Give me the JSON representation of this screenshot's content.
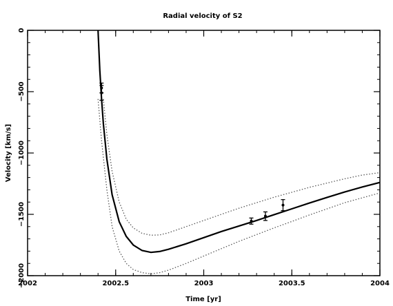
{
  "chart_data": {
    "type": "line",
    "title": "Radial velocity of S2",
    "xlabel": "Time  [yr]",
    "ylabel": "Velocity [km/s]",
    "xlim": [
      2002,
      2004
    ],
    "ylim": [
      -2000,
      0
    ],
    "x_ticks": [
      {
        "value": 2002,
        "label": "2002"
      },
      {
        "value": 2002.5,
        "label": "2002.5"
      },
      {
        "value": 2003,
        "label": "2003"
      },
      {
        "value": 2003.5,
        "label": "2003.5"
      },
      {
        "value": 2004,
        "label": "2004"
      }
    ],
    "y_ticks": [
      {
        "value": 0,
        "label": "0"
      },
      {
        "value": -500,
        "label": "−500"
      },
      {
        "value": -1000,
        "label": "−1000"
      },
      {
        "value": -1500,
        "label": "−1500"
      },
      {
        "value": -2000,
        "label": "−2000"
      }
    ],
    "grid": false,
    "series": [
      {
        "style": "solid",
        "x": [
          2002.4,
          2002.41,
          2002.42,
          2002.43,
          2002.45,
          2002.48,
          2002.52,
          2002.56,
          2002.6,
          2002.65,
          2002.7,
          2002.75,
          2002.8,
          2002.9,
          2003.0,
          2003.1,
          2003.2,
          2003.3,
          2003.4,
          2003.5,
          2003.6,
          2003.7,
          2003.8,
          2003.9,
          2004.0
        ],
        "y": [
          0,
          -330,
          -560,
          -760,
          -1050,
          -1340,
          -1560,
          -1680,
          -1750,
          -1795,
          -1810,
          -1803,
          -1785,
          -1740,
          -1690,
          -1640,
          -1595,
          -1550,
          -1502,
          -1455,
          -1408,
          -1362,
          -1318,
          -1277,
          -1240
        ]
      },
      {
        "style": "dotted",
        "x": [
          2002.43,
          2002.45,
          2002.48,
          2002.52,
          2002.56,
          2002.6,
          2002.65,
          2002.7,
          2002.75,
          2002.8,
          2002.9,
          2003.0,
          2003.1,
          2003.2,
          2003.3,
          2003.4,
          2003.5,
          2003.6,
          2003.7,
          2003.8,
          2003.9,
          2004.0
        ],
        "y": [
          -560,
          -850,
          -1150,
          -1400,
          -1540,
          -1610,
          -1655,
          -1670,
          -1668,
          -1650,
          -1600,
          -1550,
          -1500,
          -1450,
          -1405,
          -1360,
          -1320,
          -1280,
          -1245,
          -1210,
          -1180,
          -1160
        ]
      },
      {
        "style": "dotted",
        "x": [
          2002.4,
          2002.42,
          2002.45,
          2002.48,
          2002.52,
          2002.56,
          2002.6,
          2002.65,
          2002.7,
          2002.75,
          2002.8,
          2002.9,
          2003.0,
          2003.1,
          2003.2,
          2003.3,
          2003.4,
          2003.5,
          2003.6,
          2003.7,
          2003.8,
          2003.9,
          2004.0
        ],
        "y": [
          -560,
          -900,
          -1300,
          -1600,
          -1800,
          -1900,
          -1950,
          -1975,
          -1985,
          -1975,
          -1955,
          -1900,
          -1840,
          -1780,
          -1720,
          -1665,
          -1610,
          -1558,
          -1505,
          -1455,
          -1405,
          -1365,
          -1325
        ]
      }
    ],
    "points": [
      {
        "x": 2002.42,
        "y": -510,
        "err": 60
      },
      {
        "x": 2002.42,
        "y": -470,
        "err": 40
      },
      {
        "x": 2003.27,
        "y": -1555,
        "err": 25
      },
      {
        "x": 2003.35,
        "y": -1515,
        "err": 35
      },
      {
        "x": 2003.45,
        "y": -1425,
        "err": 45
      }
    ]
  }
}
